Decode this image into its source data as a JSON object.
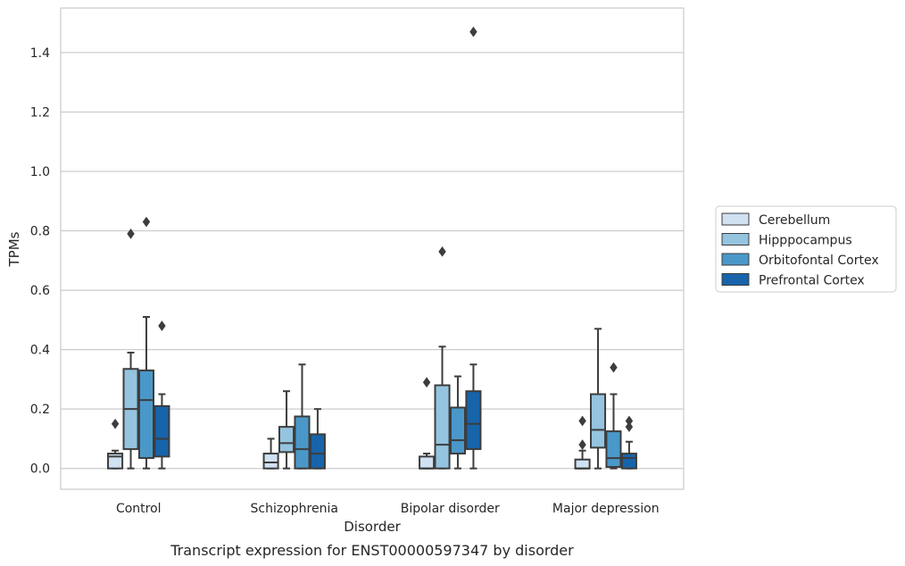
{
  "caption": "Transcript expression for ENST00000597347 by disorder",
  "chart_data": {
    "type": "box",
    "xlabel": "Disorder",
    "ylabel": "TPMs",
    "ylim": [
      -0.07,
      1.55
    ],
    "yticks": [
      "0.0",
      "0.2",
      "0.4",
      "0.6",
      "0.8",
      "1.0",
      "1.2",
      "1.4"
    ],
    "grid": true,
    "legend_position": "right",
    "categories": [
      "Control",
      "Schizophrenia",
      "Bipolar disorder",
      "Major depression"
    ],
    "series": [
      {
        "name": "Cerebellum",
        "color": "#d0e1f2",
        "boxes": [
          {
            "min": 0.0,
            "q1": 0.0,
            "median": 0.04,
            "q3": 0.05,
            "max": 0.06,
            "outliers": [
              0.15
            ]
          },
          {
            "min": 0.0,
            "q1": 0.0,
            "median": 0.02,
            "q3": 0.05,
            "max": 0.1,
            "outliers": []
          },
          {
            "min": 0.0,
            "q1": 0.0,
            "median": 0.0,
            "q3": 0.04,
            "max": 0.05,
            "outliers": [
              0.29
            ]
          },
          {
            "min": 0.0,
            "q1": 0.0,
            "median": 0.0,
            "q3": 0.03,
            "max": 0.06,
            "outliers": [
              0.08,
              0.16
            ]
          }
        ]
      },
      {
        "name": "Hipppocampus",
        "color": "#94c4df",
        "boxes": [
          {
            "min": 0.0,
            "q1": 0.065,
            "median": 0.2,
            "q3": 0.335,
            "max": 0.39,
            "outliers": [
              0.79
            ]
          },
          {
            "min": 0.0,
            "q1": 0.055,
            "median": 0.085,
            "q3": 0.14,
            "max": 0.26,
            "outliers": []
          },
          {
            "min": 0.0,
            "q1": 0.0,
            "median": 0.08,
            "q3": 0.28,
            "max": 0.41,
            "outliers": [
              0.73
            ]
          },
          {
            "min": 0.0,
            "q1": 0.07,
            "median": 0.13,
            "q3": 0.25,
            "max": 0.47,
            "outliers": []
          }
        ]
      },
      {
        "name": "Orbitofontal Cortex",
        "color": "#4a98c9",
        "boxes": [
          {
            "min": 0.0,
            "q1": 0.035,
            "median": 0.23,
            "q3": 0.33,
            "max": 0.51,
            "outliers": [
              0.83
            ]
          },
          {
            "min": 0.0,
            "q1": 0.0,
            "median": 0.065,
            "q3": 0.175,
            "max": 0.35,
            "outliers": []
          },
          {
            "min": 0.0,
            "q1": 0.05,
            "median": 0.095,
            "q3": 0.205,
            "max": 0.31,
            "outliers": []
          },
          {
            "min": 0.0,
            "q1": 0.005,
            "median": 0.035,
            "q3": 0.125,
            "max": 0.25,
            "outliers": [
              0.34
            ]
          }
        ]
      },
      {
        "name": "Prefrontal Cortex",
        "color": "#1764ab",
        "boxes": [
          {
            "min": 0.0,
            "q1": 0.04,
            "median": 0.1,
            "q3": 0.21,
            "max": 0.25,
            "outliers": [
              0.48
            ]
          },
          {
            "min": 0.0,
            "q1": 0.0,
            "median": 0.05,
            "q3": 0.115,
            "max": 0.2,
            "outliers": []
          },
          {
            "min": 0.0,
            "q1": 0.065,
            "median": 0.15,
            "q3": 0.26,
            "max": 0.35,
            "outliers": [
              1.47
            ]
          },
          {
            "min": 0.0,
            "q1": 0.0,
            "median": 0.035,
            "q3": 0.05,
            "max": 0.09,
            "outliers": [
              0.14,
              0.16
            ]
          }
        ]
      }
    ]
  }
}
